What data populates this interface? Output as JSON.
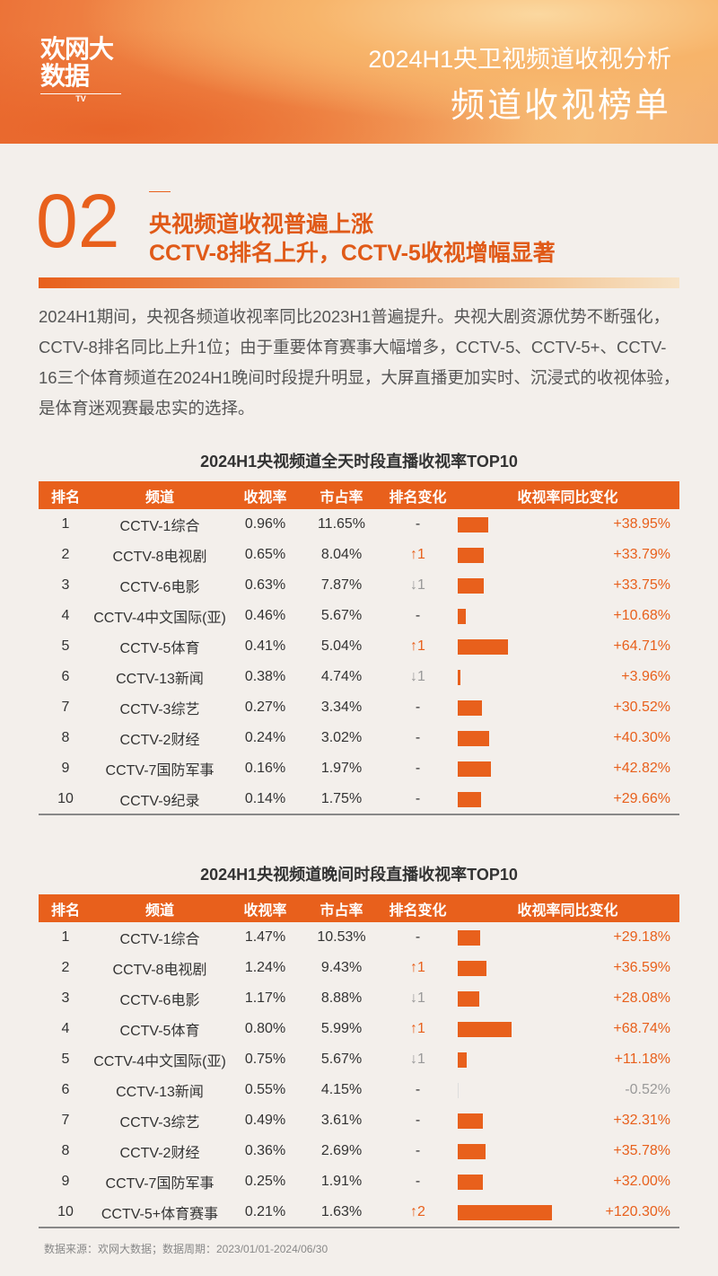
{
  "header": {
    "logo": "欢网大数据",
    "logo_sub": "TV",
    "title": "2024H1央卫视频道收视分析",
    "subtitle": "频道收视榜单"
  },
  "section": {
    "number": "02",
    "title1": "央视频道收视普遍上涨",
    "title2": "CCTV-8排名上升，CCTV-5收视增幅显著"
  },
  "paragraph": "2024H1期间，央视各频道收视率同比2023H1普遍提升。央视大剧资源优势不断强化，CCTV-8排名同比上升1位；由于重要体育赛事大幅增多，CCTV-5、CCTV-5+、CCTV-16三个体育频道在2024H1晚间时段提升明显，大屏直播更加实时、沉浸式的收视体验，是体育迷观赛最忠实的选择。",
  "columns": [
    "排名",
    "频道",
    "收视率",
    "市占率",
    "排名变化",
    "收视率同比变化"
  ],
  "tables": [
    {
      "title": "2024H1央视频道全天时段直播收视率TOP10",
      "rows": [
        [
          "1",
          "CCTV-1综合",
          "0.96%",
          "11.65%",
          "-",
          "+38.95%",
          38.95
        ],
        [
          "2",
          "CCTV-8电视剧",
          "0.65%",
          "8.04%",
          "↑1",
          "+33.79%",
          33.79
        ],
        [
          "3",
          "CCTV-6电影",
          "0.63%",
          "7.87%",
          "↓1",
          "+33.75%",
          33.75
        ],
        [
          "4",
          "CCTV-4中文国际(亚)",
          "0.46%",
          "5.67%",
          "-",
          "+10.68%",
          10.68
        ],
        [
          "5",
          "CCTV-5体育",
          "0.41%",
          "5.04%",
          "↑1",
          "+64.71%",
          64.71
        ],
        [
          "6",
          "CCTV-13新闻",
          "0.38%",
          "4.74%",
          "↓1",
          "+3.96%",
          3.96
        ],
        [
          "7",
          "CCTV-3综艺",
          "0.27%",
          "3.34%",
          "-",
          "+30.52%",
          30.52
        ],
        [
          "8",
          "CCTV-2财经",
          "0.24%",
          "3.02%",
          "-",
          "+40.30%",
          40.3
        ],
        [
          "9",
          "CCTV-7国防军事",
          "0.16%",
          "1.97%",
          "-",
          "+42.82%",
          42.82
        ],
        [
          "10",
          "CCTV-9纪录",
          "0.14%",
          "1.75%",
          "-",
          "+29.66%",
          29.66
        ]
      ]
    },
    {
      "title": "2024H1央视频道晚间时段直播收视率TOP10",
      "rows": [
        [
          "1",
          "CCTV-1综合",
          "1.47%",
          "10.53%",
          "-",
          "+29.18%",
          29.18
        ],
        [
          "2",
          "CCTV-8电视剧",
          "1.24%",
          "9.43%",
          "↑1",
          "+36.59%",
          36.59
        ],
        [
          "3",
          "CCTV-6电影",
          "1.17%",
          "8.88%",
          "↓1",
          "+28.08%",
          28.08
        ],
        [
          "4",
          "CCTV-5体育",
          "0.80%",
          "5.99%",
          "↑1",
          "+68.74%",
          68.74
        ],
        [
          "5",
          "CCTV-4中文国际(亚)",
          "0.75%",
          "5.67%",
          "↓1",
          "+11.18%",
          11.18
        ],
        [
          "6",
          "CCTV-13新闻",
          "0.55%",
          "4.15%",
          "-",
          "-0.52%",
          -0.52
        ],
        [
          "7",
          "CCTV-3综艺",
          "0.49%",
          "3.61%",
          "-",
          "+32.31%",
          32.31
        ],
        [
          "8",
          "CCTV-2财经",
          "0.36%",
          "2.69%",
          "-",
          "+35.78%",
          35.78
        ],
        [
          "9",
          "CCTV-7国防军事",
          "0.25%",
          "1.91%",
          "-",
          "+32.00%",
          32.0
        ],
        [
          "10",
          "CCTV-5+体育赛事",
          "0.21%",
          "1.63%",
          "↑2",
          "+120.30%",
          120.3
        ]
      ]
    }
  ],
  "footer": "数据来源：欢网大数据；数据周期：2023/01/01-2024/06/30",
  "colors": {
    "accent": "#e8601c",
    "down": "#999999"
  }
}
